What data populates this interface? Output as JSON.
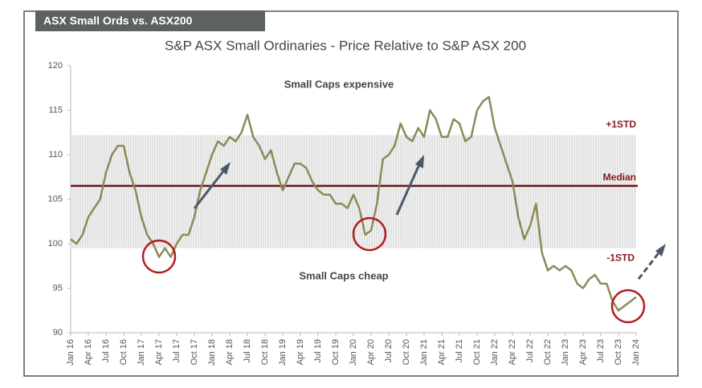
{
  "header": {
    "tab": "ASX Small Ords vs. ASX200"
  },
  "chart_data": {
    "type": "line",
    "title": "S&P ASX Small Ordinaries - Price Relative to S&P ASX 200",
    "categories": [
      "Jan 16",
      null,
      null,
      "Apr 16",
      null,
      null,
      "Jul 16",
      null,
      null,
      "Oct 16",
      null,
      null,
      "Jan 17",
      null,
      null,
      "Apr 17",
      null,
      null,
      "Jul 17",
      null,
      null,
      "Oct 17",
      null,
      null,
      "Jan 18",
      null,
      null,
      "Apr 18",
      null,
      null,
      "Jul 18",
      null,
      null,
      "Oct 18",
      null,
      null,
      "Jan 19",
      null,
      null,
      "Apr 19",
      null,
      null,
      "Jul 19",
      null,
      null,
      "Oct 19",
      null,
      null,
      "Jan 20",
      null,
      null,
      "Apr 20",
      null,
      null,
      "Jul 20",
      null,
      null,
      "Oct 20",
      null,
      null,
      "Jan 21",
      null,
      null,
      "Apr 21",
      null,
      null,
      "Jul 21",
      null,
      null,
      "Oct 21",
      null,
      null,
      "Jan 22",
      null,
      null,
      "Apr 22",
      null,
      null,
      "Jul 22",
      null,
      null,
      "Oct 22",
      null,
      null,
      "Jan 23",
      null,
      null,
      "Apr 23",
      null,
      null,
      "Jul 23",
      null,
      null,
      "Oct 23",
      null,
      null,
      "Jan 24"
    ],
    "series": [
      {
        "color": "#8c8a58",
        "values": [
          100.5,
          100,
          101,
          103,
          104,
          105,
          108,
          110,
          111,
          111,
          108,
          106,
          103,
          101,
          100,
          98.5,
          99.5,
          98.5,
          100,
          101,
          101,
          103,
          106,
          108,
          110,
          111.5,
          111,
          112,
          111.5,
          112.5,
          114.5,
          112,
          111,
          109.5,
          110.5,
          108,
          106,
          107.5,
          109,
          109,
          108.5,
          107,
          106,
          105.5,
          105.5,
          104.5,
          104.5,
          104,
          105.5,
          104,
          101,
          101.5,
          104.5,
          109.5,
          110,
          111,
          113.5,
          112,
          111.5,
          113,
          112,
          115,
          114,
          112,
          112,
          114,
          113.5,
          111.5,
          112,
          115,
          116,
          116.5,
          113,
          111,
          109,
          107,
          103,
          100.5,
          102,
          104.5,
          99,
          97,
          97.5,
          97,
          97.5,
          97,
          95.5,
          95,
          96,
          96.5,
          95.5,
          95.5,
          93.5,
          92.5,
          93,
          93.5,
          94
        ]
      }
    ],
    "ylim": [
      90,
      120
    ],
    "yticks": [
      90,
      95,
      100,
      105,
      110,
      115,
      120
    ],
    "bands": {
      "upper": {
        "label": "+1STD",
        "value": 112.2
      },
      "median": {
        "label": "Median",
        "value": 106.5
      },
      "lower": {
        "label": "-1STD",
        "value": 99.5
      }
    },
    "annotations": {
      "expensive": "Small Caps expensive",
      "cheap": "Small Caps cheap"
    }
  }
}
